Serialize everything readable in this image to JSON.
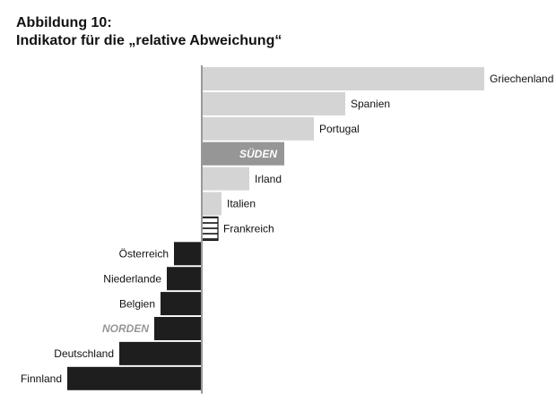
{
  "figure": {
    "title": "Abbildung 10:",
    "subtitle": "Indikator für die „relative Abweichung“"
  },
  "colors": {
    "positive": "#d4d4d4",
    "south_aggregate": "#969696",
    "negative": "#1e1e1e",
    "north_label": "#969696",
    "axis": "#999999",
    "text": "#111111"
  },
  "chart_data": {
    "type": "bar",
    "orientation": "horizontal",
    "title": "Indikator für die „relative Abweichung“",
    "xlabel": "",
    "ylabel": "",
    "grid": false,
    "legend": "none",
    "xlim": [
      -150,
      315
    ],
    "categories": [
      "Griechenland",
      "Spanien",
      "Portugal",
      "SÜDEN",
      "Irland",
      "Italien",
      "Frankreich",
      "Österreich",
      "Niederlande",
      "Belgien",
      "NORDEN",
      "Deutschland",
      "Finnland"
    ],
    "values": [
      315,
      160,
      125,
      92,
      53,
      22,
      18,
      -31,
      -39,
      -46,
      -53,
      -92,
      -150
    ],
    "styles": [
      "pos",
      "pos",
      "pos",
      "south",
      "pos",
      "pos",
      "hatched",
      "neg",
      "neg",
      "neg",
      "neg",
      "neg",
      "neg"
    ]
  }
}
